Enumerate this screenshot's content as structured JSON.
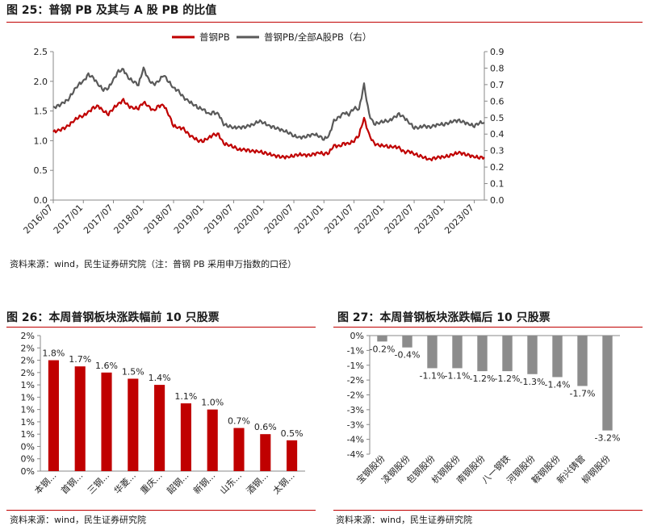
{
  "figure25": {
    "title": "图 25：普钢 PB 及其与 A 股 PB 的比值",
    "source": "资料来源：wind，民生证券研究院（注：普钢 PB 采用申万指数的口径）"
  },
  "figure26": {
    "title": "图 26：本周普钢板块涨跌幅前 10 只股票",
    "source": "资料来源：wind，民生证券研究院"
  },
  "figure27": {
    "title": "图 27：本周普钢板块涨跌幅后 10 只股票",
    "source": "资料来源：wind，民生证券研究院"
  },
  "chart_data": [
    {
      "type": "line",
      "x_ticks": [
        "2016/07",
        "2017/01",
        "2017/07",
        "2018/01",
        "2018/07",
        "2019/01",
        "2019/07",
        "2020/01",
        "2020/07",
        "2021/01",
        "2021/07",
        "2022/01",
        "2022/07",
        "2023/01",
        "2023/07"
      ],
      "x_range": [
        "2016/07",
        "2023/09"
      ],
      "ylim_left": [
        0,
        2.5
      ],
      "y_ticks_left": [
        "0.0",
        "0.5",
        "1.0",
        "1.5",
        "2.0",
        "2.5"
      ],
      "ylim_right": [
        0,
        0.9
      ],
      "y_ticks_right": [
        "0.0",
        "0.1",
        "0.2",
        "0.3",
        "0.4",
        "0.5",
        "0.6",
        "0.7",
        "0.8",
        "0.9"
      ],
      "legend_position": "top-center",
      "series": [
        {
          "name": "普钢PB",
          "axis": "left",
          "color": "#c00000",
          "points": [
            [
              "2016/07",
              1.15
            ],
            [
              "2016/08",
              1.17
            ],
            [
              "2016/09",
              1.2
            ],
            [
              "2016/10",
              1.25
            ],
            [
              "2016/11",
              1.33
            ],
            [
              "2016/12",
              1.4
            ],
            [
              "2017/01",
              1.42
            ],
            [
              "2017/02",
              1.48
            ],
            [
              "2017/03",
              1.55
            ],
            [
              "2017/04",
              1.58
            ],
            [
              "2017/05",
              1.5
            ],
            [
              "2017/06",
              1.45
            ],
            [
              "2017/07",
              1.55
            ],
            [
              "2017/08",
              1.62
            ],
            [
              "2017/09",
              1.68
            ],
            [
              "2017/10",
              1.58
            ],
            [
              "2017/11",
              1.55
            ],
            [
              "2017/12",
              1.55
            ],
            [
              "2018/01",
              1.65
            ],
            [
              "2018/02",
              1.58
            ],
            [
              "2018/03",
              1.5
            ],
            [
              "2018/04",
              1.58
            ],
            [
              "2018/05",
              1.6
            ],
            [
              "2018/06",
              1.45
            ],
            [
              "2018/07",
              1.25
            ],
            [
              "2018/08",
              1.22
            ],
            [
              "2018/09",
              1.2
            ],
            [
              "2018/10",
              1.1
            ],
            [
              "2018/11",
              1.05
            ],
            [
              "2018/12",
              1.0
            ],
            [
              "2019/01",
              1.0
            ],
            [
              "2019/02",
              1.05
            ],
            [
              "2019/03",
              1.1
            ],
            [
              "2019/04",
              1.1
            ],
            [
              "2019/05",
              0.95
            ],
            [
              "2019/06",
              0.93
            ],
            [
              "2019/07",
              0.9
            ],
            [
              "2019/08",
              0.85
            ],
            [
              "2019/09",
              0.85
            ],
            [
              "2019/10",
              0.83
            ],
            [
              "2019/11",
              0.82
            ],
            [
              "2019/12",
              0.82
            ],
            [
              "2020/01",
              0.8
            ],
            [
              "2020/02",
              0.78
            ],
            [
              "2020/03",
              0.75
            ],
            [
              "2020/04",
              0.73
            ],
            [
              "2020/05",
              0.72
            ],
            [
              "2020/06",
              0.73
            ],
            [
              "2020/07",
              0.75
            ],
            [
              "2020/08",
              0.77
            ],
            [
              "2020/09",
              0.76
            ],
            [
              "2020/10",
              0.75
            ],
            [
              "2020/11",
              0.77
            ],
            [
              "2020/12",
              0.8
            ],
            [
              "2021/01",
              0.78
            ],
            [
              "2021/02",
              0.8
            ],
            [
              "2021/03",
              0.92
            ],
            [
              "2021/04",
              0.9
            ],
            [
              "2021/05",
              0.95
            ],
            [
              "2021/06",
              0.95
            ],
            [
              "2021/07",
              1.0
            ],
            [
              "2021/08",
              1.1
            ],
            [
              "2021/09",
              1.38
            ],
            [
              "2021/10",
              1.1
            ],
            [
              "2021/11",
              0.95
            ],
            [
              "2021/12",
              0.92
            ],
            [
              "2022/01",
              0.92
            ],
            [
              "2022/02",
              0.9
            ],
            [
              "2022/03",
              0.9
            ],
            [
              "2022/04",
              0.88
            ],
            [
              "2022/05",
              0.8
            ],
            [
              "2022/06",
              0.82
            ],
            [
              "2022/07",
              0.78
            ],
            [
              "2022/08",
              0.75
            ],
            [
              "2022/09",
              0.72
            ],
            [
              "2022/10",
              0.68
            ],
            [
              "2022/11",
              0.7
            ],
            [
              "2022/12",
              0.72
            ],
            [
              "2023/01",
              0.73
            ],
            [
              "2023/02",
              0.75
            ],
            [
              "2023/03",
              0.78
            ],
            [
              "2023/04",
              0.8
            ],
            [
              "2023/05",
              0.77
            ],
            [
              "2023/06",
              0.75
            ],
            [
              "2023/07",
              0.73
            ],
            [
              "2023/08",
              0.72
            ],
            [
              "2023/09",
              0.72
            ]
          ]
        },
        {
          "name": "普钢PB/全部A股PB（右）",
          "axis": "right",
          "color": "#595959",
          "points": [
            [
              "2016/07",
              0.56
            ],
            [
              "2016/08",
              0.57
            ],
            [
              "2016/09",
              0.59
            ],
            [
              "2016/10",
              0.61
            ],
            [
              "2016/11",
              0.66
            ],
            [
              "2016/12",
              0.7
            ],
            [
              "2017/01",
              0.72
            ],
            [
              "2017/02",
              0.76
            ],
            [
              "2017/03",
              0.74
            ],
            [
              "2017/04",
              0.7
            ],
            [
              "2017/05",
              0.67
            ],
            [
              "2017/06",
              0.68
            ],
            [
              "2017/07",
              0.73
            ],
            [
              "2017/08",
              0.78
            ],
            [
              "2017/09",
              0.79
            ],
            [
              "2017/10",
              0.74
            ],
            [
              "2017/11",
              0.72
            ],
            [
              "2017/12",
              0.7
            ],
            [
              "2018/01",
              0.8
            ],
            [
              "2018/02",
              0.73
            ],
            [
              "2018/03",
              0.7
            ],
            [
              "2018/04",
              0.72
            ],
            [
              "2018/05",
              0.76
            ],
            [
              "2018/06",
              0.72
            ],
            [
              "2018/07",
              0.68
            ],
            [
              "2018/08",
              0.66
            ],
            [
              "2018/09",
              0.62
            ],
            [
              "2018/10",
              0.6
            ],
            [
              "2018/11",
              0.58
            ],
            [
              "2018/12",
              0.56
            ],
            [
              "2019/01",
              0.55
            ],
            [
              "2019/02",
              0.52
            ],
            [
              "2019/03",
              0.53
            ],
            [
              "2019/04",
              0.52
            ],
            [
              "2019/05",
              0.46
            ],
            [
              "2019/06",
              0.45
            ],
            [
              "2019/07",
              0.44
            ],
            [
              "2019/08",
              0.44
            ],
            [
              "2019/09",
              0.44
            ],
            [
              "2019/10",
              0.45
            ],
            [
              "2019/11",
              0.46
            ],
            [
              "2019/12",
              0.48
            ],
            [
              "2020/01",
              0.47
            ],
            [
              "2020/02",
              0.45
            ],
            [
              "2020/03",
              0.44
            ],
            [
              "2020/04",
              0.43
            ],
            [
              "2020/05",
              0.42
            ],
            [
              "2020/06",
              0.41
            ],
            [
              "2020/07",
              0.39
            ],
            [
              "2020/08",
              0.38
            ],
            [
              "2020/09",
              0.38
            ],
            [
              "2020/10",
              0.39
            ],
            [
              "2020/11",
              0.4
            ],
            [
              "2020/12",
              0.39
            ],
            [
              "2021/01",
              0.37
            ],
            [
              "2021/02",
              0.39
            ],
            [
              "2021/03",
              0.48
            ],
            [
              "2021/04",
              0.5
            ],
            [
              "2021/05",
              0.53
            ],
            [
              "2021/06",
              0.52
            ],
            [
              "2021/07",
              0.56
            ],
            [
              "2021/08",
              0.55
            ],
            [
              "2021/09",
              0.7
            ],
            [
              "2021/10",
              0.52
            ],
            [
              "2021/11",
              0.46
            ],
            [
              "2021/12",
              0.47
            ],
            [
              "2022/01",
              0.48
            ],
            [
              "2022/02",
              0.48
            ],
            [
              "2022/03",
              0.5
            ],
            [
              "2022/04",
              0.52
            ],
            [
              "2022/05",
              0.5
            ],
            [
              "2022/06",
              0.47
            ],
            [
              "2022/07",
              0.44
            ],
            [
              "2022/08",
              0.44
            ],
            [
              "2022/09",
              0.45
            ],
            [
              "2022/10",
              0.44
            ],
            [
              "2022/11",
              0.45
            ],
            [
              "2022/12",
              0.46
            ],
            [
              "2023/01",
              0.46
            ],
            [
              "2023/02",
              0.47
            ],
            [
              "2023/03",
              0.48
            ],
            [
              "2023/04",
              0.48
            ],
            [
              "2023/05",
              0.47
            ],
            [
              "2023/06",
              0.46
            ],
            [
              "2023/07",
              0.45
            ],
            [
              "2023/08",
              0.47
            ],
            [
              "2023/09",
              0.47
            ]
          ]
        }
      ]
    },
    {
      "type": "bar",
      "color": "#c00000",
      "categories": [
        "本钢...",
        "首钢...",
        "三钢...",
        "华菱...",
        "重庆...",
        "韶钢...",
        "新钢...",
        "山东...",
        "酒钢...",
        "太钢..."
      ],
      "values": [
        1.8,
        1.7,
        1.6,
        1.5,
        1.4,
        1.1,
        1.0,
        0.7,
        0.6,
        0.5
      ],
      "data_labels": [
        "1.8%",
        "1.7%",
        "1.6%",
        "1.5%",
        "1.4%",
        "1.1%",
        "1.0%",
        "0.7%",
        "0.6%",
        "0.5%"
      ],
      "ylim": [
        0,
        2.2
      ],
      "y_ticks": [
        0,
        0.2,
        0.4,
        0.6,
        0.8,
        1.0,
        1.2,
        1.4,
        1.6,
        1.8,
        2.0,
        2.2
      ],
      "y_tick_labels": [
        "0%",
        "0%",
        "0%",
        "1%",
        "1%",
        "1%",
        "1%",
        "1%",
        "2%",
        "2%",
        "2%",
        "2%"
      ]
    },
    {
      "type": "bar",
      "color": "#8c8c8c",
      "categories": [
        "宝钢股份",
        "凌钢股份",
        "包钢股份",
        "杭钢股份",
        "南钢股份",
        "八一钢铁",
        "河钢股份",
        "鞍钢股份",
        "新兴铸管",
        "柳钢股份"
      ],
      "values": [
        -0.2,
        -0.4,
        -1.1,
        -1.1,
        -1.2,
        -1.2,
        -1.3,
        -1.4,
        -1.7,
        -3.2
      ],
      "data_labels": [
        "-0.2%",
        "-0.4%",
        "-1.1%",
        "-1.1%",
        "-1.2%",
        "-1.2%",
        "-1.3%",
        "-1.4%",
        "-1.7%",
        "-3.2%"
      ],
      "ylim": [
        -4,
        0
      ],
      "y_ticks": [
        0,
        -0.5,
        -1,
        -1.5,
        -2,
        -2.5,
        -3,
        -3.5,
        -4
      ],
      "y_tick_labels": [
        "0%",
        "-1%",
        "-1%",
        "-2%",
        "-2%",
        "-3%",
        "-3%",
        "-4%",
        "-4%"
      ]
    }
  ]
}
